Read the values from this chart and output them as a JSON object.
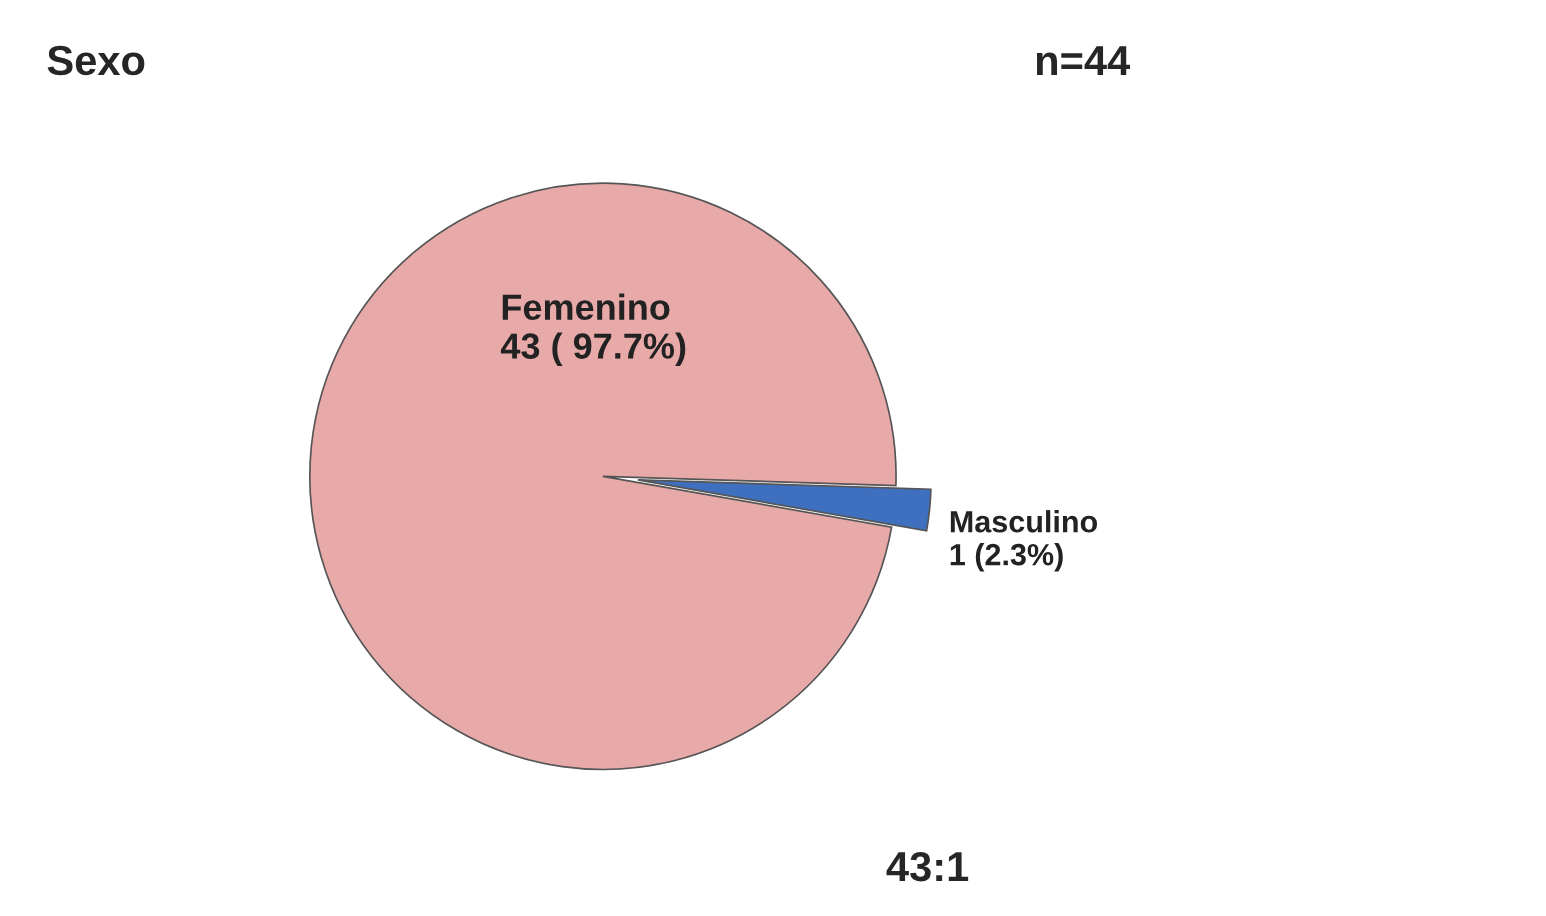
{
  "chart_data": {
    "type": "pie",
    "title": "Sexo",
    "categories": [
      "Femenino",
      "Masculino"
    ],
    "values": [
      43,
      1
    ],
    "colors": [
      "#e8a9a9",
      "#3f6fbf"
    ],
    "value_labels": [
      "43 ( 97.7%)",
      "1 (2.3%)"
    ],
    "annotations": [
      "n=44",
      "43:1"
    ]
  }
}
